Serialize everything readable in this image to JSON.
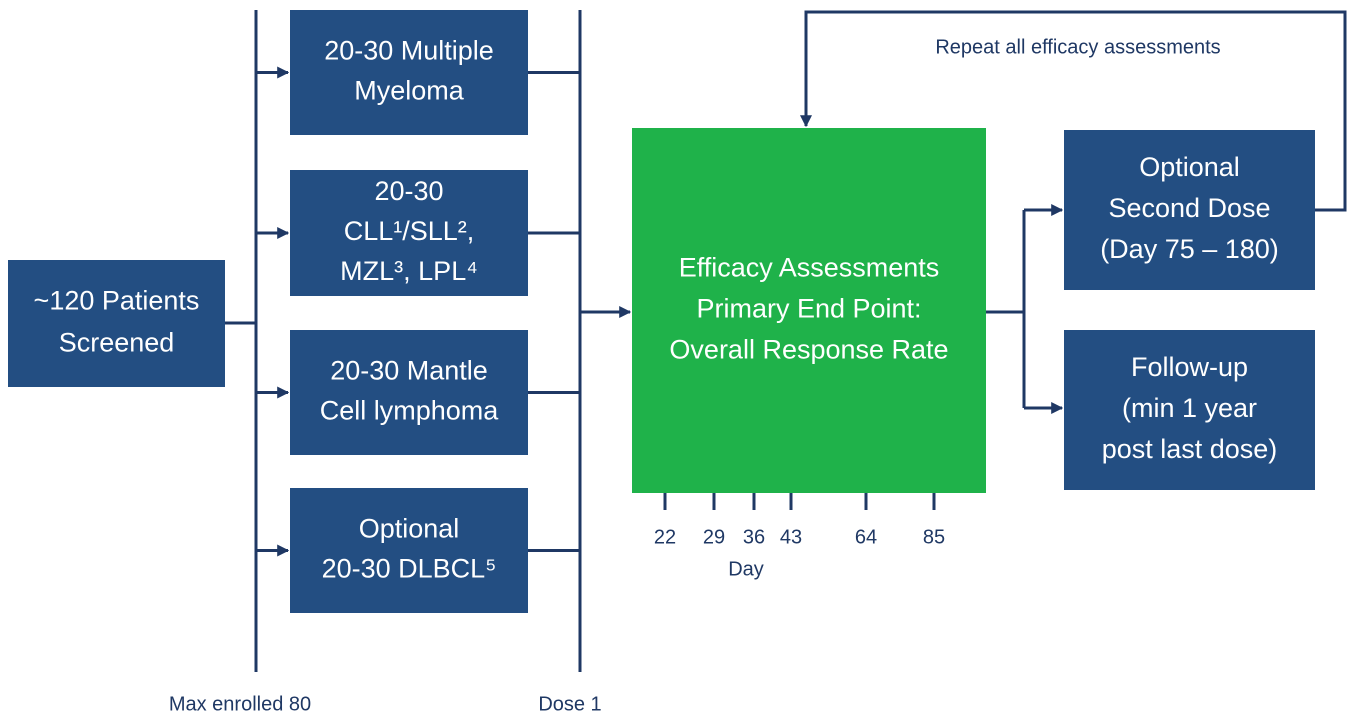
{
  "screened": {
    "lines": [
      "~120 Patients",
      "Screened"
    ]
  },
  "cohorts": [
    {
      "lines": [
        "20-30 Multiple",
        "Myeloma"
      ]
    },
    {
      "lines": [
        "20-30",
        "CLL¹/SLL²,",
        "MZL³, LPL⁴"
      ]
    },
    {
      "lines": [
        "20-30 Mantle",
        "Cell lymphoma"
      ]
    },
    {
      "lines": [
        "Optional",
        "20-30 DLBCL⁵"
      ]
    }
  ],
  "assessment": {
    "lines": [
      "Efficacy Assessments",
      "Primary End Point:",
      "Overall Response Rate"
    ]
  },
  "days": {
    "ticks": [
      22,
      29,
      36,
      43,
      64,
      85
    ],
    "label": "Day"
  },
  "outcomes": [
    {
      "lines": [
        "Optional",
        "Second Dose",
        "(Day 75 – 180)"
      ]
    },
    {
      "lines": [
        "Follow-up",
        "(min 1 year",
        "post last dose)"
      ]
    }
  ],
  "loop_label": "Repeat all efficacy assessments",
  "axis_labels": {
    "enrollment": "Max enrolled 80",
    "dose": "Dose 1"
  }
}
